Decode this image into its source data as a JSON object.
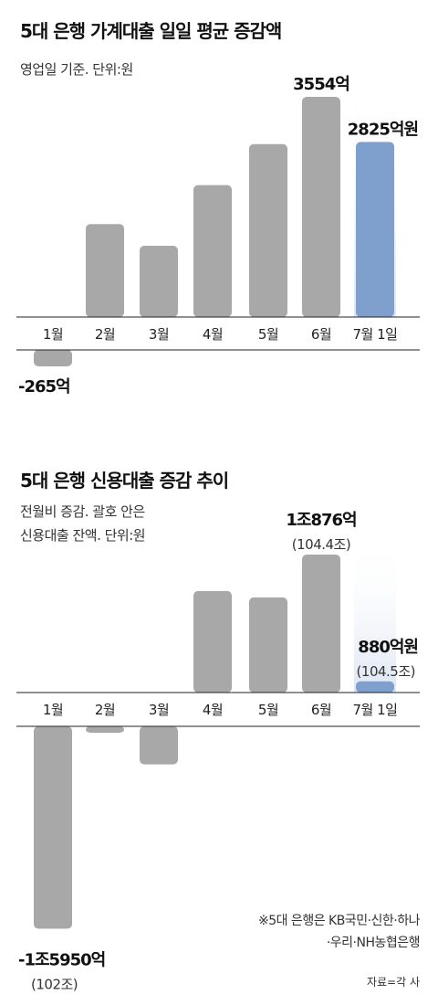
{
  "chart_data": [
    {
      "type": "bar",
      "title": "5대 은행 가계대출 일일 평균 증감액",
      "subtitle": "영업일 기준. 단위:원",
      "categories": [
        "1월",
        "2월",
        "3월",
        "4월",
        "5월",
        "6월",
        "7월 1일"
      ],
      "values": [
        -265,
        1500,
        1150,
        2130,
        2790,
        3554,
        2825
      ],
      "unit": "억원",
      "data_labels": [
        {
          "index": 0,
          "text": "-265억"
        },
        {
          "index": 5,
          "text": "3554억"
        },
        {
          "index": 6,
          "text": "2825억원"
        }
      ],
      "highlight_index": 6,
      "colors": {
        "bar": "#a8a8a8",
        "highlight": "#7f9fcd"
      }
    },
    {
      "type": "bar",
      "title": "5대 은행 신용대출 증감 추이",
      "subtitle_lines": [
        "전월비 증감. 괄호 안은",
        "신용대출 잔액. 단위:원"
      ],
      "categories": [
        "1월",
        "2월",
        "3월",
        "4월",
        "5월",
        "6월",
        "7월 1일"
      ],
      "values": [
        -15950,
        -500,
        -3000,
        8000,
        7500,
        10876,
        880
      ],
      "unit": "억원",
      "data_labels": [
        {
          "index": 0,
          "text": "-1조5950억",
          "sub": "(102조)"
        },
        {
          "index": 5,
          "text": "1조876억",
          "sub": "(104.4조)"
        },
        {
          "index": 6,
          "text": "880억원",
          "sub": "(104.5조)"
        }
      ],
      "highlight_index": 6,
      "colors": {
        "bar": "#a8a8a8",
        "highlight": "#7f9fcd"
      }
    }
  ],
  "footnote_lines": [
    "※5대 은행은 KB국민·신한·하나",
    "·우리·NH농협은행"
  ],
  "source": "자료=각 사"
}
